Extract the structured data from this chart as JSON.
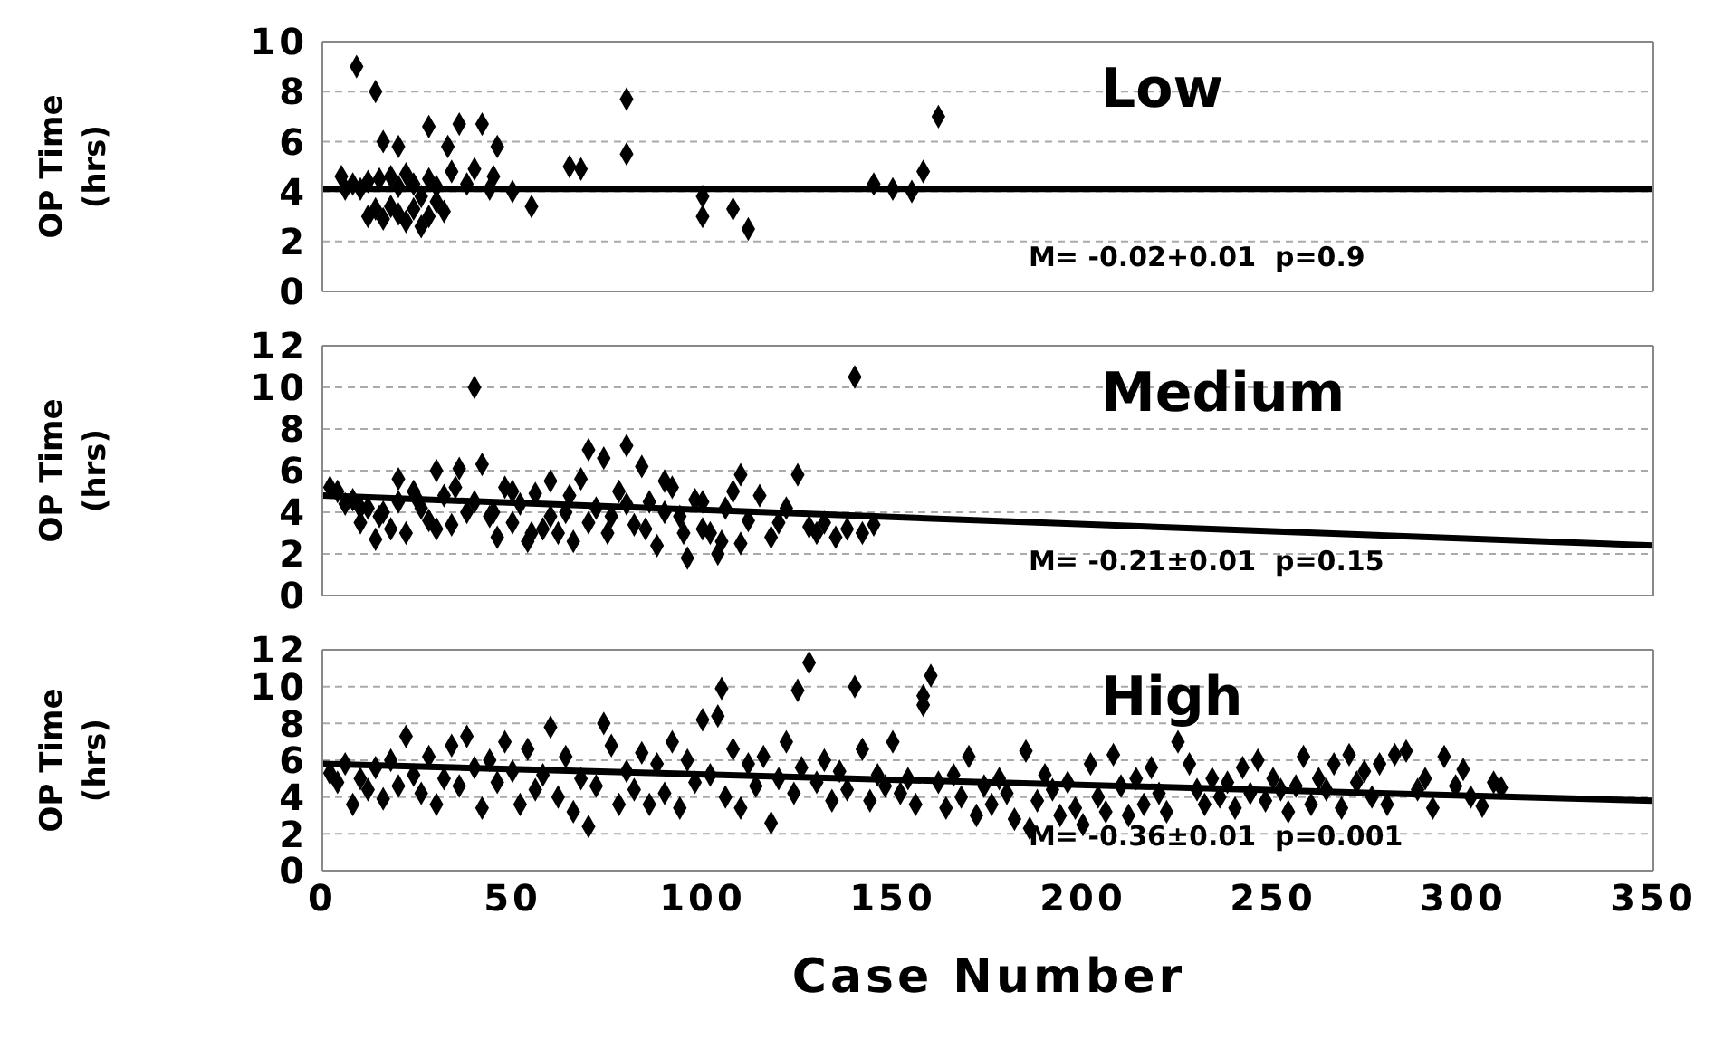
{
  "chart_data": [
    {
      "type": "scatter",
      "title": "Low",
      "ylabel": "OP Time (hrs)",
      "xlim": [
        0,
        350
      ],
      "xticks": [
        0,
        50,
        100,
        150,
        200,
        250,
        300,
        350
      ],
      "ylim": [
        0,
        10
      ],
      "yticks": [
        0,
        2,
        4,
        6,
        8,
        10
      ],
      "tick_labels": "y",
      "grid": "y",
      "annotations": [
        "M= -0.02+0.01  p=0.9"
      ],
      "series": [
        {
          "marker": "diamond",
          "color": "#000000",
          "x": [
            5,
            6,
            8,
            9,
            10,
            12,
            14,
            15,
            16,
            18,
            20,
            22,
            24,
            28,
            33,
            36,
            40,
            42,
            46,
            34,
            28,
            30,
            38,
            44,
            50,
            55,
            12,
            14,
            16,
            18,
            20,
            22,
            24,
            26,
            28,
            30,
            32,
            26,
            65,
            68,
            80,
            80,
            100,
            100,
            108,
            112,
            145,
            150,
            155,
            158,
            162,
            20,
            45
          ],
          "values": [
            4.6,
            4.1,
            4.3,
            9.0,
            4.1,
            4.4,
            8.0,
            4.5,
            6.0,
            4.6,
            5.8,
            4.7,
            4.3,
            6.6,
            5.8,
            6.7,
            4.9,
            6.7,
            5.8,
            4.8,
            4.5,
            4.2,
            4.3,
            4.1,
            4.0,
            3.4,
            3.0,
            3.3,
            2.9,
            3.4,
            3.1,
            2.8,
            3.3,
            2.6,
            3.0,
            3.6,
            3.2,
            3.8,
            5.0,
            4.9,
            5.5,
            7.7,
            3.8,
            3.0,
            3.3,
            2.5,
            4.3,
            4.1,
            4.0,
            4.8,
            7.0,
            4.2,
            4.6
          ]
        },
        {
          "type": "line",
          "color": "#000000",
          "x": [
            0,
            350
          ],
          "values": [
            4.1,
            4.1
          ]
        }
      ]
    },
    {
      "type": "scatter",
      "title": "Medium",
      "ylabel": "OP Time (hrs)",
      "xlim": [
        0,
        350
      ],
      "xticks": [
        0,
        50,
        100,
        150,
        200,
        250,
        300,
        350
      ],
      "ylim": [
        0,
        12
      ],
      "yticks": [
        0,
        2,
        4,
        6,
        8,
        10,
        12
      ],
      "tick_labels": "y",
      "grid": "y",
      "annotations": [
        "M= -0.21±0.01  p=0.15"
      ],
      "series": [
        {
          "marker": "diamond",
          "color": "#000000",
          "x": [
            2,
            4,
            6,
            8,
            10,
            12,
            14,
            16,
            18,
            20,
            22,
            24,
            26,
            28,
            30,
            32,
            34,
            36,
            38,
            40,
            42,
            44,
            46,
            48,
            50,
            52,
            54,
            56,
            58,
            60,
            62,
            64,
            66,
            68,
            70,
            72,
            74,
            76,
            78,
            80,
            82,
            84,
            86,
            88,
            90,
            92,
            94,
            96,
            98,
            100,
            102,
            104,
            106,
            108,
            110,
            112,
            115,
            118,
            120,
            122,
            125,
            128,
            130,
            132,
            135,
            138,
            140,
            142,
            145,
            10,
            15,
            25,
            35,
            45,
            55,
            65,
            75,
            85,
            95,
            105,
            20,
            30,
            40,
            50,
            60,
            70,
            80,
            90,
            100,
            110
          ],
          "values": [
            5.2,
            5.0,
            4.4,
            4.6,
            3.5,
            4.2,
            2.7,
            4.0,
            3.2,
            4.5,
            3.0,
            5.0,
            4.2,
            3.6,
            6.0,
            4.8,
            3.4,
            6.1,
            4.0,
            10.0,
            6.3,
            3.8,
            2.8,
            5.2,
            3.5,
            4.4,
            2.6,
            4.9,
            3.2,
            5.5,
            3.0,
            4.0,
            2.6,
            5.6,
            7.0,
            4.2,
            6.6,
            3.8,
            5.0,
            7.2,
            3.4,
            6.2,
            4.5,
            2.4,
            4.0,
            5.2,
            3.8,
            1.8,
            4.6,
            4.5,
            3.0,
            2.0,
            4.2,
            5.0,
            5.8,
            3.6,
            4.8,
            2.8,
            3.5,
            4.2,
            5.8,
            3.3,
            3.0,
            3.5,
            2.8,
            3.2,
            10.5,
            3.0,
            3.4,
            4.2,
            3.8,
            4.6,
            5.2,
            4.0,
            3.0,
            4.8,
            3.0,
            3.2,
            3.0,
            2.6,
            5.6,
            3.2,
            4.5,
            5.0,
            3.8,
            3.5,
            4.4,
            5.5,
            3.2,
            2.5
          ]
        },
        {
          "type": "line",
          "color": "#000000",
          "x": [
            0,
            350
          ],
          "values": [
            4.8,
            2.4
          ]
        }
      ]
    },
    {
      "type": "scatter",
      "title": "High",
      "xlabel": "Case Number",
      "ylabel": "OP Time (hrs)",
      "xlim": [
        0,
        350
      ],
      "xticks": [
        0,
        50,
        100,
        150,
        200,
        250,
        300,
        350
      ],
      "ylim": [
        0,
        12
      ],
      "yticks": [
        0,
        2,
        4,
        6,
        8,
        10,
        12
      ],
      "grid": "y",
      "annotations": [
        "M= -0.36±0.01  p=0.001"
      ],
      "series": [
        {
          "marker": "diamond",
          "color": "#000000",
          "x": [
            2,
            4,
            6,
            8,
            10,
            12,
            14,
            16,
            18,
            20,
            22,
            24,
            26,
            28,
            30,
            32,
            34,
            36,
            38,
            40,
            42,
            44,
            46,
            48,
            50,
            52,
            54,
            56,
            58,
            60,
            62,
            64,
            66,
            68,
            70,
            72,
            74,
            76,
            78,
            80,
            82,
            84,
            86,
            88,
            90,
            92,
            94,
            96,
            98,
            100,
            102,
            104,
            105,
            106,
            108,
            110,
            112,
            114,
            116,
            118,
            120,
            122,
            124,
            125,
            126,
            128,
            130,
            132,
            134,
            136,
            138,
            140,
            142,
            144,
            146,
            148,
            150,
            152,
            154,
            156,
            158,
            158,
            160,
            162,
            164,
            166,
            168,
            170,
            172,
            174,
            176,
            178,
            180,
            182,
            185,
            186,
            188,
            190,
            192,
            194,
            196,
            198,
            200,
            202,
            204,
            206,
            208,
            210,
            212,
            214,
            216,
            218,
            220,
            222,
            225,
            228,
            230,
            232,
            234,
            236,
            238,
            240,
            242,
            244,
            246,
            248,
            250,
            252,
            254,
            256,
            258,
            260,
            262,
            264,
            266,
            268,
            270,
            272,
            274,
            276,
            278,
            280,
            282,
            285,
            288,
            290,
            292,
            295,
            298,
            300,
            302,
            305,
            308,
            310
          ],
          "values": [
            5.3,
            4.8,
            5.8,
            3.6,
            5.0,
            4.4,
            5.6,
            3.9,
            6.0,
            4.6,
            7.3,
            5.2,
            4.2,
            6.2,
            3.6,
            5.0,
            6.8,
            4.6,
            7.3,
            5.6,
            3.4,
            6.0,
            4.8,
            7.0,
            5.4,
            3.6,
            6.6,
            4.4,
            5.2,
            7.8,
            4.0,
            6.2,
            3.2,
            5.0,
            2.4,
            4.6,
            8.0,
            6.8,
            3.6,
            5.4,
            4.4,
            6.4,
            3.6,
            5.8,
            4.2,
            7.0,
            3.4,
            6.0,
            4.8,
            8.2,
            5.2,
            8.4,
            9.9,
            4.0,
            6.6,
            3.4,
            5.8,
            4.6,
            6.2,
            2.6,
            5.0,
            7.0,
            4.2,
            9.8,
            5.6,
            11.3,
            4.8,
            6.0,
            3.8,
            5.4,
            4.4,
            10.0,
            6.6,
            3.8,
            5.2,
            4.6,
            7.0,
            4.2,
            5.0,
            3.6,
            9.0,
            9.5,
            10.6,
            4.8,
            3.4,
            5.2,
            4.0,
            6.2,
            3.0,
            4.6,
            3.6,
            5.0,
            4.2,
            2.8,
            6.5,
            2.3,
            3.8,
            5.2,
            4.4,
            3.0,
            4.8,
            3.4,
            2.5,
            5.8,
            4.0,
            3.2,
            6.3,
            4.6,
            3.0,
            5.0,
            3.6,
            5.6,
            4.2,
            3.2,
            7.0,
            5.8,
            4.4,
            3.6,
            5.0,
            4.0,
            4.8,
            3.4,
            5.6,
            4.2,
            6.0,
            3.8,
            5.0,
            4.4,
            3.2,
            4.6,
            6.2,
            3.6,
            5.0,
            4.4,
            5.8,
            3.4,
            6.3,
            4.8,
            5.4,
            4.0,
            5.8,
            3.6,
            6.3,
            6.5,
            4.4,
            5.0,
            3.4,
            6.2,
            4.6,
            5.5,
            4.0,
            3.5,
            4.8,
            4.5
          ]
        },
        {
          "type": "line",
          "color": "#000000",
          "x": [
            0,
            350
          ],
          "values": [
            5.8,
            3.8
          ]
        }
      ]
    }
  ]
}
